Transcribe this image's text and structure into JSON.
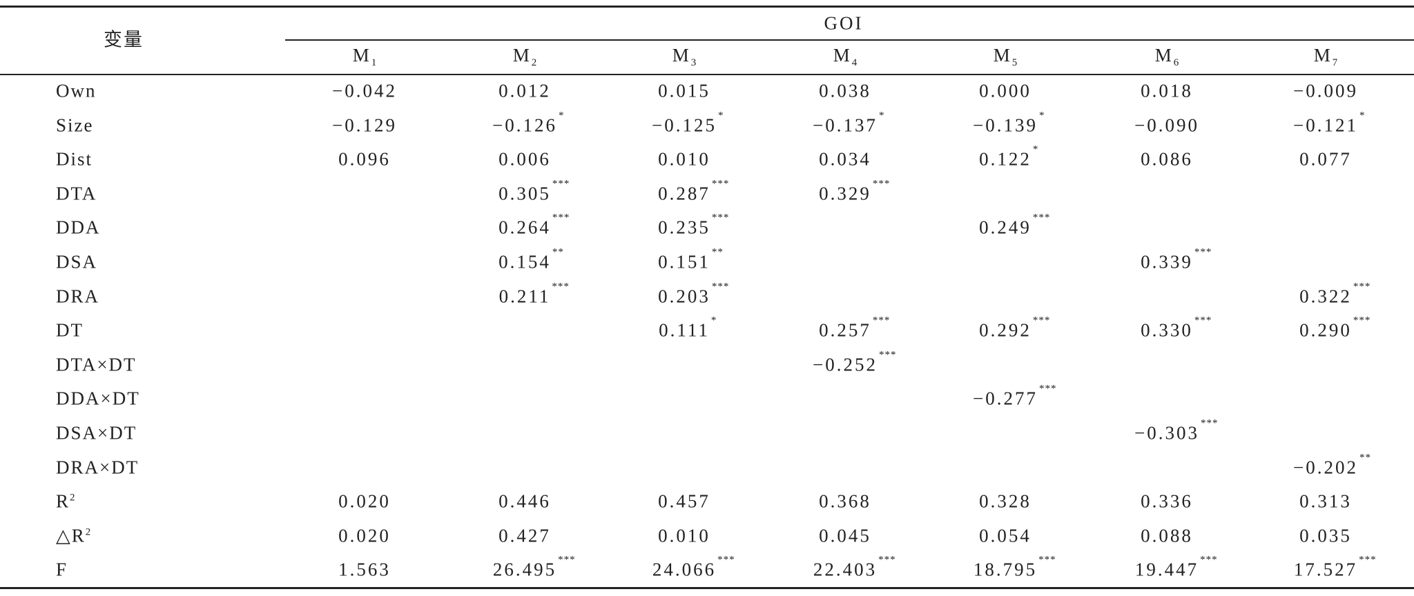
{
  "table": {
    "corner": "变量",
    "group": "GOI",
    "models": [
      {
        "base": "M",
        "sub": "1"
      },
      {
        "base": "M",
        "sub": "2"
      },
      {
        "base": "M",
        "sub": "3"
      },
      {
        "base": "M",
        "sub": "4"
      },
      {
        "base": "M",
        "sub": "5"
      },
      {
        "base": "M",
        "sub": "6"
      },
      {
        "base": "M",
        "sub": "7"
      }
    ],
    "rows": [
      {
        "label": "Own",
        "cells": [
          "−0.042",
          "0.012",
          "0.015",
          "0.038",
          "0.000",
          "0.018",
          "−0.009"
        ]
      },
      {
        "label": "Size",
        "cells": [
          "−0.129",
          {
            "value": "−0.126",
            "sig": "*"
          },
          {
            "value": "−0.125",
            "sig": "*"
          },
          {
            "value": "−0.137",
            "sig": "*"
          },
          {
            "value": "−0.139",
            "sig": "*"
          },
          "−0.090",
          {
            "value": "−0.121",
            "sig": "*"
          }
        ]
      },
      {
        "label": "Dist",
        "cells": [
          "0.096",
          "0.006",
          "0.010",
          "0.034",
          {
            "value": "0.122",
            "sig": "*"
          },
          "0.086",
          "0.077"
        ]
      },
      {
        "label": "DTA",
        "cells": [
          null,
          {
            "value": "0.305",
            "sig": "***"
          },
          {
            "value": "0.287",
            "sig": "***"
          },
          {
            "value": "0.329",
            "sig": "***"
          },
          null,
          null,
          null
        ]
      },
      {
        "label": "DDA",
        "cells": [
          null,
          {
            "value": "0.264",
            "sig": "***"
          },
          {
            "value": "0.235",
            "sig": "***"
          },
          null,
          {
            "value": "0.249",
            "sig": "***"
          },
          null,
          null
        ]
      },
      {
        "label": "DSA",
        "cells": [
          null,
          {
            "value": "0.154",
            "sig": "**"
          },
          {
            "value": "0.151",
            "sig": "**"
          },
          null,
          null,
          {
            "value": "0.339",
            "sig": "***"
          },
          null
        ]
      },
      {
        "label": "DRA",
        "cells": [
          null,
          {
            "value": "0.211",
            "sig": "***"
          },
          {
            "value": "0.203",
            "sig": "***"
          },
          null,
          null,
          null,
          {
            "value": "0.322",
            "sig": "***"
          }
        ]
      },
      {
        "label": "DT",
        "cells": [
          null,
          null,
          {
            "value": "0.111",
            "sig": "*"
          },
          {
            "value": "0.257",
            "sig": "***"
          },
          {
            "value": "0.292",
            "sig": "***"
          },
          {
            "value": "0.330",
            "sig": "***"
          },
          {
            "value": "0.290",
            "sig": "***"
          }
        ]
      },
      {
        "label": "DTA×DT",
        "cells": [
          null,
          null,
          null,
          {
            "value": "−0.252",
            "sig": "***"
          },
          null,
          null,
          null
        ]
      },
      {
        "label": "DDA×DT",
        "cells": [
          null,
          null,
          null,
          null,
          {
            "value": "−0.277",
            "sig": "***"
          },
          null,
          null
        ]
      },
      {
        "label": "DSA×DT",
        "cells": [
          null,
          null,
          null,
          null,
          null,
          {
            "value": "−0.303",
            "sig": "***"
          },
          null
        ]
      },
      {
        "label": "DRA×DT",
        "cells": [
          null,
          null,
          null,
          null,
          null,
          null,
          {
            "value": "−0.202",
            "sig": "**"
          }
        ]
      },
      {
        "label": {
          "base": "R",
          "sup": "2"
        },
        "cells": [
          "0.020",
          "0.446",
          "0.457",
          "0.368",
          "0.328",
          "0.336",
          "0.313"
        ]
      },
      {
        "label": {
          "base": "△R",
          "sup": "2"
        },
        "cells": [
          "0.020",
          "0.427",
          "0.010",
          "0.045",
          "0.054",
          "0.088",
          "0.035"
        ]
      },
      {
        "label": "F",
        "cells": [
          "1.563",
          {
            "value": "26.495",
            "sig": "***"
          },
          {
            "value": "24.066",
            "sig": "***"
          },
          {
            "value": "22.403",
            "sig": "***"
          },
          {
            "value": "18.795",
            "sig": "***"
          },
          {
            "value": "19.447",
            "sig": "***"
          },
          {
            "value": "17.527",
            "sig": "***"
          }
        ]
      }
    ]
  }
}
